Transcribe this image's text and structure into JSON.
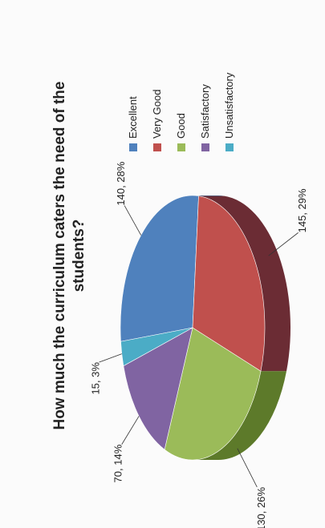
{
  "chart_data": {
    "type": "pie",
    "title": "How much the curriculum caters the need of the students?",
    "legend_position": "right",
    "categories": [
      "Excellent",
      "Very Good",
      "Good",
      "Satisfactory",
      "Unsatisfactory"
    ],
    "values": [
      140,
      145,
      130,
      70,
      15
    ],
    "percentages": [
      28,
      29,
      26,
      14,
      3
    ],
    "data_labels": [
      "140, 28%",
      "145, 29%",
      "130, 26%",
      "70, 14%",
      "15, 3%"
    ],
    "colors": [
      "#4f81bd",
      "#c0504d",
      "#9bbb59",
      "#8064a2",
      "#4bacc6"
    ],
    "side_colors": [
      "#2f5a8c",
      "#6b2c34",
      "#5d7a2a",
      "#4f3d6b",
      "#2a7a94"
    ]
  }
}
